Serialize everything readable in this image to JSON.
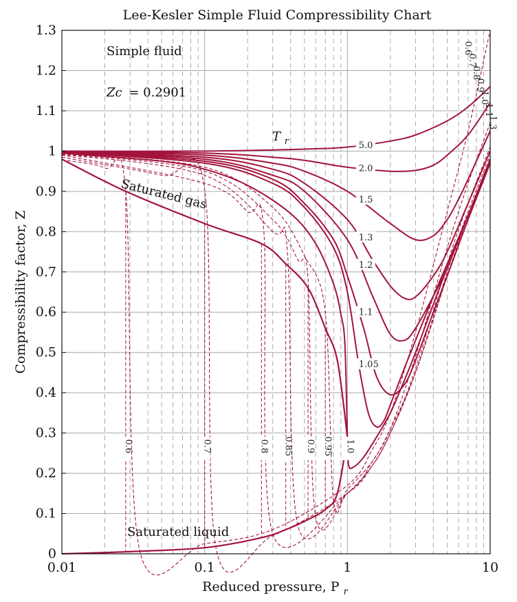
{
  "chart_data": {
    "type": "line",
    "title": "Lee-Kesler Simple Fluid Compressibility Chart",
    "xlabel": "Reduced pressure, P",
    "xlabel_sub": "r",
    "ylabel": "Compressibility factor, Z",
    "x_scale": "log",
    "xlim": [
      0.01,
      10
    ],
    "ylim": [
      0,
      1.3
    ],
    "x_ticks": [
      {
        "value": 0.01,
        "label": "0.01"
      },
      {
        "value": 0.1,
        "label": "0.1"
      },
      {
        "value": 1,
        "label": "1"
      },
      {
        "value": 10,
        "label": "10"
      }
    ],
    "y_ticks": [
      {
        "value": 0,
        "label": "0"
      },
      {
        "value": 0.1,
        "label": "0.1"
      },
      {
        "value": 0.2,
        "label": "0.2"
      },
      {
        "value": 0.3,
        "label": "0.3"
      },
      {
        "value": 0.4,
        "label": "0.4"
      },
      {
        "value": 0.5,
        "label": "0.5"
      },
      {
        "value": 0.6,
        "label": "0.6"
      },
      {
        "value": 0.7,
        "label": "0.7"
      },
      {
        "value": 0.8,
        "label": "0.8"
      },
      {
        "value": 0.9,
        "label": "0.9"
      },
      {
        "value": 1,
        "label": "1"
      },
      {
        "value": 1.1,
        "label": "1.1"
      },
      {
        "value": 1.2,
        "label": "1.2"
      },
      {
        "value": 1.3,
        "label": "1.3"
      }
    ],
    "grid": true,
    "annotations": {
      "fluid": "Simple fluid",
      "zc_label": "Zc",
      "zc_value": "= 0.2901",
      "tr_symbol": "T",
      "tr_sub": "r",
      "saturated_gas": "Saturated gas",
      "saturated_liquid": "Saturated liquid"
    },
    "colors": {
      "curve": "#a3133b",
      "grid": "#a8a8a8",
      "axis": "#111111"
    },
    "series": [
      {
        "name": "5.0",
        "style": "solid",
        "label_x": 1.2,
        "x": [
          0.01,
          0.1,
          0.5,
          1,
          2,
          3,
          5,
          7,
          10
        ],
        "y": [
          1.0,
          1.0,
          1.005,
          1.01,
          1.025,
          1.04,
          1.075,
          1.11,
          1.16
        ]
      },
      {
        "name": "2.0",
        "style": "solid",
        "label_x": 1.2,
        "x": [
          0.01,
          0.1,
          0.3,
          0.5,
          1,
          2,
          3,
          4,
          5,
          7,
          10
        ],
        "y": [
          0.999,
          0.995,
          0.985,
          0.977,
          0.96,
          0.95,
          0.952,
          0.965,
          0.99,
          1.04,
          1.12
        ]
      },
      {
        "name": "1.5",
        "style": "solid",
        "label_x": 1.2,
        "x": [
          0.01,
          0.1,
          0.3,
          0.5,
          1,
          2,
          3,
          4,
          5,
          6,
          7,
          10
        ],
        "y": [
          0.999,
          0.99,
          0.97,
          0.95,
          0.9,
          0.82,
          0.78,
          0.79,
          0.83,
          0.88,
          0.93,
          1.05
        ]
      },
      {
        "name": "1.3",
        "style": "solid",
        "label_x": 1.2,
        "x": [
          0.01,
          0.1,
          0.3,
          0.5,
          1,
          1.5,
          2,
          2.5,
          3,
          4,
          5,
          7,
          10
        ],
        "y": [
          0.998,
          0.985,
          0.955,
          0.92,
          0.83,
          0.73,
          0.665,
          0.635,
          0.638,
          0.69,
          0.75,
          0.87,
          1.0
        ]
      },
      {
        "name": "1.2",
        "style": "solid",
        "label_x": 1.2,
        "x": [
          0.01,
          0.1,
          0.3,
          0.5,
          1,
          1.5,
          2,
          2.5,
          3,
          4,
          5,
          7,
          10
        ],
        "y": [
          0.998,
          0.98,
          0.94,
          0.9,
          0.78,
          0.64,
          0.545,
          0.53,
          0.56,
          0.64,
          0.71,
          0.84,
          0.98
        ]
      },
      {
        "name": "1.1",
        "style": "solid",
        "label_x": 1.2,
        "x": [
          0.01,
          0.1,
          0.3,
          0.5,
          0.8,
          1,
          1.3,
          1.6,
          2,
          2.5,
          3,
          4,
          5,
          7,
          10
        ],
        "y": [
          0.997,
          0.975,
          0.93,
          0.87,
          0.78,
          0.69,
          0.56,
          0.44,
          0.395,
          0.42,
          0.48,
          0.6,
          0.69,
          0.83,
          0.97
        ]
      },
      {
        "name": "1.05",
        "style": "solid",
        "label_x": 1.2,
        "x": [
          0.01,
          0.1,
          0.3,
          0.5,
          0.8,
          1,
          1.2,
          1.4,
          1.6,
          1.8,
          2,
          2.5,
          3,
          4,
          5,
          7,
          10
        ],
        "y": [
          0.997,
          0.97,
          0.92,
          0.86,
          0.76,
          0.65,
          0.47,
          0.35,
          0.315,
          0.33,
          0.37,
          0.46,
          0.53,
          0.64,
          0.72,
          0.84,
          0.97
        ]
      },
      {
        "name": "1.0",
        "style": "solid",
        "label_x": 1.0,
        "x": [
          0.01,
          0.05,
          0.1,
          0.2,
          0.4,
          0.6,
          0.8,
          0.9,
          0.96,
          1,
          1.02,
          1.1,
          1.3,
          1.6,
          2,
          2.5,
          3,
          4,
          5,
          7,
          10
        ],
        "y": [
          0.995,
          0.975,
          0.955,
          0.915,
          0.845,
          0.77,
          0.67,
          0.595,
          0.52,
          0.29,
          0.22,
          0.215,
          0.24,
          0.29,
          0.35,
          0.43,
          0.5,
          0.62,
          0.71,
          0.84,
          0.97
        ]
      },
      {
        "name": "0.95",
        "style": "dashed",
        "label_x": 0.75,
        "x": [
          0.01,
          0.1,
          0.3,
          0.5,
          0.7,
          0.8,
          1,
          1.5,
          2,
          3,
          5,
          7,
          10
        ],
        "y": [
          0.994,
          0.96,
          0.86,
          0.74,
          0.6,
          0.13,
          0.16,
          0.23,
          0.31,
          0.45,
          0.69,
          0.83,
          0.97
        ]
      },
      {
        "name": "0.9",
        "style": "dashed",
        "label_x": 0.55,
        "x": [
          0.01,
          0.1,
          0.3,
          0.45,
          0.53,
          0.6,
          1,
          1.5,
          2,
          3,
          5,
          7,
          10
        ],
        "y": [
          0.993,
          0.95,
          0.83,
          0.73,
          0.68,
          0.09,
          0.15,
          0.22,
          0.3,
          0.45,
          0.69,
          0.84,
          0.98
        ]
      },
      {
        "name": "0.85",
        "style": "dashed",
        "label_x": 0.4,
        "x": [
          0.01,
          0.1,
          0.3,
          0.38,
          0.45,
          1,
          1.5,
          2,
          3,
          5,
          7,
          10
        ],
        "y": [
          0.992,
          0.94,
          0.8,
          0.75,
          0.07,
          0.15,
          0.22,
          0.3,
          0.45,
          0.7,
          0.85,
          0.99
        ]
      },
      {
        "name": "0.8",
        "style": "dashed",
        "label_x": 0.28,
        "x": [
          0.01,
          0.1,
          0.2,
          0.26,
          0.3,
          1,
          1.5,
          2,
          3,
          5,
          7,
          10
        ],
        "y": [
          0.99,
          0.92,
          0.85,
          0.8,
          0.05,
          0.15,
          0.22,
          0.3,
          0.46,
          0.72,
          0.87,
          1.01
        ]
      },
      {
        "name": "0.7",
        "style": "dashed",
        "label_x": 0.1,
        "x": [
          0.01,
          0.05,
          0.1,
          0.12,
          0.3,
          1,
          1.5,
          2,
          3,
          5,
          7,
          10
        ],
        "y": [
          0.985,
          0.94,
          0.905,
          0.015,
          0.045,
          0.15,
          0.23,
          0.31,
          0.49,
          0.76,
          0.92,
          1.07
        ]
      },
      {
        "name": "0.6",
        "style": "dashed",
        "label_x": 0.03,
        "x": [
          0.01,
          0.02,
          0.028,
          0.035,
          0.1,
          0.3,
          1,
          1.5,
          2,
          3,
          5,
          7,
          10
        ],
        "y": [
          0.978,
          0.958,
          0.9,
          0.01,
          0.025,
          0.06,
          0.17,
          0.26,
          0.35,
          0.55,
          0.85,
          1.05,
          1.3
        ]
      }
    ],
    "saturation": {
      "gas": {
        "x": [
          0.01,
          0.028,
          0.1,
          0.25,
          0.37,
          0.53,
          0.7,
          0.85,
          1.0
        ],
        "y": [
          0.98,
          0.9,
          0.82,
          0.77,
          0.72,
          0.66,
          0.56,
          0.48,
          0.29
        ]
      },
      "liquid": {
        "x": [
          0.01,
          0.028,
          0.1,
          0.25,
          0.37,
          0.53,
          0.7,
          0.85,
          1.0
        ],
        "y": [
          0.0,
          0.005,
          0.015,
          0.04,
          0.06,
          0.085,
          0.11,
          0.15,
          0.29
        ]
      },
      "vertical_labels": [
        {
          "label": "0.6",
          "x": 0.028
        },
        {
          "label": "0.7",
          "x": 0.1
        },
        {
          "label": "0.8",
          "x": 0.25
        },
        {
          "label": "0.85",
          "x": 0.37
        },
        {
          "label": "0.9",
          "x": 0.53
        },
        {
          "label": "0.95",
          "x": 0.7
        },
        {
          "label": "1.0",
          "x": 1.0
        }
      ]
    },
    "right_edge_labels": [
      "0.6",
      "0.7",
      "0.8",
      "0.9",
      "1.0",
      "1.1",
      "1.3"
    ]
  }
}
